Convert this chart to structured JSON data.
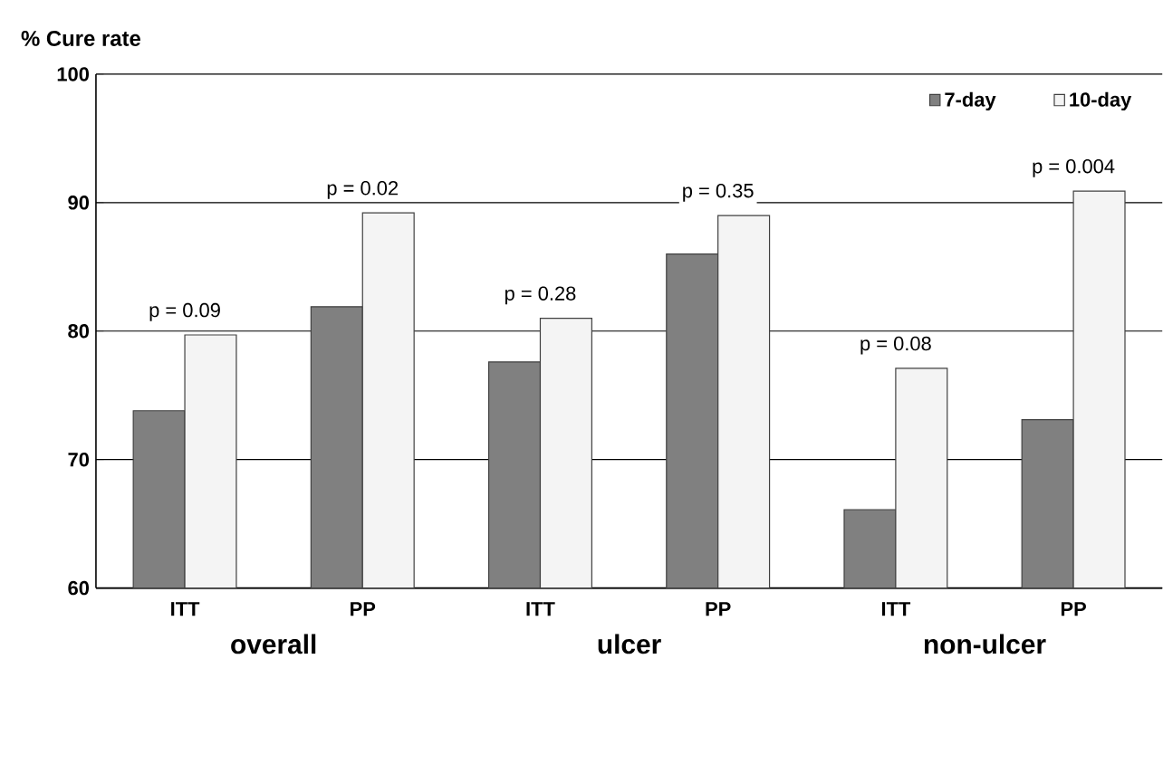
{
  "chart_data": {
    "type": "bar",
    "ylabel": "% Cure rate",
    "categories": [
      "ITT",
      "PP",
      "ITT",
      "PP",
      "ITT",
      "PP"
    ],
    "series": [
      {
        "name": "7-day",
        "color": "#808080",
        "values": [
          73.8,
          81.9,
          77.6,
          86.0,
          66.1,
          73.1
        ]
      },
      {
        "name": "10-day",
        "color": "#f4f4f4",
        "values": [
          79.7,
          89.2,
          81.0,
          89.0,
          77.1,
          90.9
        ]
      }
    ],
    "ylim": [
      60,
      100
    ],
    "yticks": [
      60,
      70,
      80,
      90,
      100
    ],
    "grid": "y",
    "legend": "top right",
    "annotations": [
      "p = 0.09",
      "p = 0.02",
      "p = 0.28",
      "p = 0.35",
      "p = 0.08",
      "p = 0.004",
      "overall",
      "ulcer",
      "non-ulcer"
    ]
  }
}
